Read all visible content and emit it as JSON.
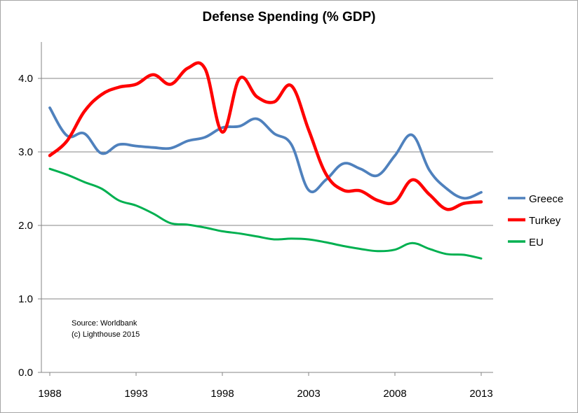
{
  "chart_data": {
    "type": "line",
    "title": "Defense Spending  (% GDP)",
    "xlabel": "",
    "ylabel": "",
    "x": [
      1988,
      1989,
      1990,
      1991,
      1992,
      1993,
      1994,
      1995,
      1996,
      1997,
      1998,
      1999,
      2000,
      2001,
      2002,
      2003,
      2004,
      2005,
      2006,
      2007,
      2008,
      2009,
      2010,
      2011,
      2012,
      2013
    ],
    "xlim": [
      1988,
      2013
    ],
    "ylim": [
      0,
      4.5
    ],
    "x_ticks": [
      "1988",
      "1993",
      "1998",
      "2003",
      "2008",
      "2013"
    ],
    "y_ticks": [
      "0.0",
      "1.0",
      "2.0",
      "3.0",
      "4.0"
    ],
    "grid": "horizontal",
    "legend": "right",
    "series": [
      {
        "name": "Greece",
        "color": "#4f81bd",
        "values": [
          3.6,
          3.22,
          3.25,
          2.98,
          3.1,
          3.08,
          3.06,
          3.05,
          3.15,
          3.2,
          3.33,
          3.35,
          3.45,
          3.25,
          3.1,
          2.48,
          2.62,
          2.84,
          2.77,
          2.68,
          2.95,
          3.23,
          2.75,
          2.5,
          2.37,
          2.45
        ]
      },
      {
        "name": "Turkey",
        "color": "#ff0000",
        "values": [
          2.95,
          3.15,
          3.55,
          3.78,
          3.88,
          3.92,
          4.05,
          3.92,
          4.14,
          4.13,
          3.27,
          4.0,
          3.75,
          3.68,
          3.9,
          3.3,
          2.7,
          2.48,
          2.47,
          2.34,
          2.32,
          2.62,
          2.42,
          2.22,
          2.3,
          2.32
        ]
      },
      {
        "name": "EU",
        "color": "#00b050",
        "values": [
          2.77,
          2.69,
          2.59,
          2.5,
          2.34,
          2.27,
          2.16,
          2.03,
          2.01,
          1.97,
          1.92,
          1.89,
          1.85,
          1.81,
          1.82,
          1.81,
          1.77,
          1.72,
          1.68,
          1.65,
          1.67,
          1.76,
          1.68,
          1.61,
          1.6,
          1.55
        ]
      }
    ],
    "annotations": [
      "Source: Worldbank",
      "(c) Lighthouse 2015"
    ]
  }
}
